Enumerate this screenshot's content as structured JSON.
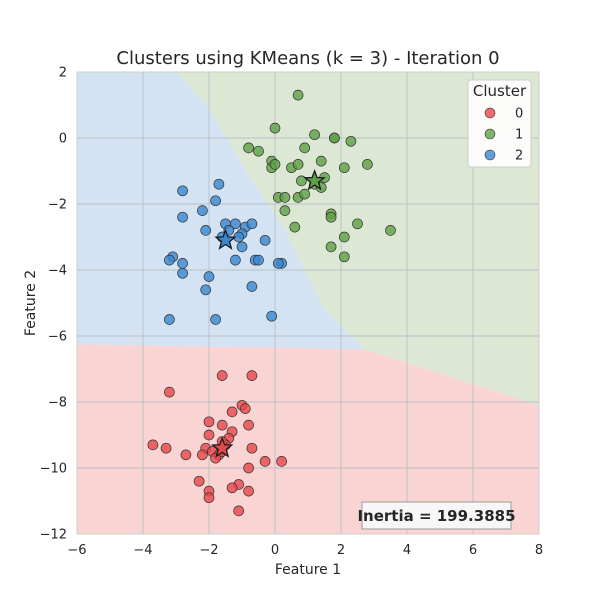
{
  "chart_data": {
    "type": "scatter",
    "title": "Clusters using KMeans (k = 3) - Iteration 0",
    "xlabel": "Feature 1",
    "ylabel": "Feature 2",
    "xlim": [
      -6,
      8
    ],
    "ylim": [
      -12,
      2
    ],
    "xticks": [
      -6,
      -4,
      -2,
      0,
      2,
      4,
      6,
      8
    ],
    "yticks": [
      -12,
      -10,
      -8,
      -6,
      -4,
      -2,
      0,
      2
    ],
    "grid": true,
    "legend": {
      "title": "Cluster",
      "placement": "top-right"
    },
    "annotation": "Inertia = 199.3885",
    "colors": {
      "0": "#e8474a",
      "1": "#5ea045",
      "2": "#3a87d0"
    },
    "region_colors": {
      "0": "#fad3d3",
      "1": "#dce8d4",
      "2": "#d3e3f3"
    },
    "decision_boundary": {
      "cluster0_upper": [
        [
          -6,
          -6.25
        ],
        [
          2.7,
          -6.4
        ],
        [
          8,
          -8.1
        ]
      ],
      "cluster1_cluster2": [
        [
          -3.0,
          2
        ],
        [
          -2.0,
          0.9
        ],
        [
          -1.0,
          -0.8
        ],
        [
          0.3,
          -2.8
        ],
        [
          1.5,
          -5.2
        ],
        [
          2.7,
          -6.4
        ]
      ]
    },
    "series": [
      {
        "name": "0",
        "points": [
          [
            -3.2,
            -7.7
          ],
          [
            -1.6,
            -7.2
          ],
          [
            -0.7,
            -7.2
          ],
          [
            -1.3,
            -8.3
          ],
          [
            -1.0,
            -8.1
          ],
          [
            -0.9,
            -8.2
          ],
          [
            -2.0,
            -8.6
          ],
          [
            -1.6,
            -8.7
          ],
          [
            -0.8,
            -8.7
          ],
          [
            -2.0,
            -9.0
          ],
          [
            -1.3,
            -8.9
          ],
          [
            -1.4,
            -9.1
          ],
          [
            -1.5,
            -9.3
          ],
          [
            -1.6,
            -9.2
          ],
          [
            -2.1,
            -9.4
          ],
          [
            -1.9,
            -9.5
          ],
          [
            -3.7,
            -9.3
          ],
          [
            -3.3,
            -9.4
          ],
          [
            -2.7,
            -9.6
          ],
          [
            -2.2,
            -9.6
          ],
          [
            -1.7,
            -9.6
          ],
          [
            -1.8,
            -9.7
          ],
          [
            -1.6,
            -9.5
          ],
          [
            -0.7,
            -9.4
          ],
          [
            -0.3,
            -9.8
          ],
          [
            0.2,
            -9.8
          ],
          [
            -0.8,
            -10.0
          ],
          [
            -2.3,
            -10.4
          ],
          [
            -1.1,
            -10.5
          ],
          [
            -1.3,
            -10.6
          ],
          [
            -2.0,
            -10.7
          ],
          [
            -0.8,
            -10.7
          ],
          [
            -2.0,
            -10.9
          ],
          [
            -1.1,
            -11.3
          ]
        ]
      },
      {
        "name": "1",
        "points": [
          [
            0.7,
            1.3
          ],
          [
            0.0,
            0.3
          ],
          [
            1.2,
            0.1
          ],
          [
            1.8,
            0.0
          ],
          [
            1.8,
            0.0
          ],
          [
            2.3,
            -0.1
          ],
          [
            -0.8,
            -0.3
          ],
          [
            -0.5,
            -0.4
          ],
          [
            0.9,
            -0.3
          ],
          [
            -0.1,
            -0.7
          ],
          [
            1.4,
            -0.7
          ],
          [
            -0.1,
            -0.9
          ],
          [
            0.0,
            -0.8
          ],
          [
            0.5,
            -0.9
          ],
          [
            0.7,
            -0.8
          ],
          [
            2.1,
            -0.9
          ],
          [
            2.8,
            -0.8
          ],
          [
            1.5,
            -1.2
          ],
          [
            0.8,
            -1.3
          ],
          [
            1.2,
            -1.4
          ],
          [
            1.4,
            -1.5
          ],
          [
            0.1,
            -1.8
          ],
          [
            0.3,
            -1.8
          ],
          [
            0.7,
            -1.8
          ],
          [
            0.9,
            -1.7
          ],
          [
            0.3,
            -2.2
          ],
          [
            1.7,
            -2.3
          ],
          [
            1.7,
            -2.4
          ],
          [
            2.5,
            -2.6
          ],
          [
            0.6,
            -2.7
          ],
          [
            3.5,
            -2.8
          ],
          [
            2.1,
            -3.0
          ],
          [
            1.7,
            -3.3
          ],
          [
            2.1,
            -3.6
          ]
        ]
      },
      {
        "name": "2",
        "points": [
          [
            -2.8,
            -1.6
          ],
          [
            -1.7,
            -1.4
          ],
          [
            -1.8,
            -1.9
          ],
          [
            -2.2,
            -2.2
          ],
          [
            -2.8,
            -2.4
          ],
          [
            -1.5,
            -2.6
          ],
          [
            -1.2,
            -2.6
          ],
          [
            -0.9,
            -2.7
          ],
          [
            -0.7,
            -2.6
          ],
          [
            -2.1,
            -2.8
          ],
          [
            -1.4,
            -2.8
          ],
          [
            -1.0,
            -2.9
          ],
          [
            -1.6,
            -3.0
          ],
          [
            -1.1,
            -3.0
          ],
          [
            -0.3,
            -3.1
          ],
          [
            -1.0,
            -3.3
          ],
          [
            -3.1,
            -3.6
          ],
          [
            -3.2,
            -3.7
          ],
          [
            -2.8,
            -3.8
          ],
          [
            -1.2,
            -3.7
          ],
          [
            -0.6,
            -3.7
          ],
          [
            -0.5,
            -3.7
          ],
          [
            0.2,
            -3.8
          ],
          [
            0.1,
            -3.8
          ],
          [
            -2.8,
            -4.1
          ],
          [
            -2.0,
            -4.2
          ],
          [
            -0.7,
            -4.5
          ],
          [
            -2.1,
            -4.6
          ],
          [
            -3.2,
            -5.5
          ],
          [
            -1.8,
            -5.5
          ],
          [
            -0.1,
            -5.4
          ]
        ]
      }
    ],
    "centroids": [
      {
        "cluster": "0",
        "x": -1.6,
        "y": -9.4
      },
      {
        "cluster": "1",
        "x": 1.2,
        "y": -1.3
      },
      {
        "cluster": "2",
        "x": -1.5,
        "y": -3.1
      }
    ]
  }
}
